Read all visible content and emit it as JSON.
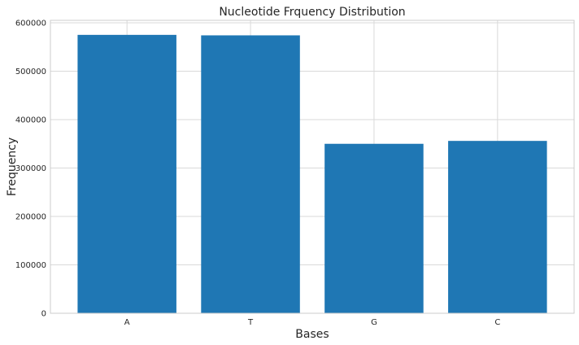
{
  "chart_data": {
    "type": "bar",
    "title": "Nucleotide Frquency Distribution",
    "xlabel": "Bases",
    "ylabel": "Frequency",
    "categories": [
      "A",
      "T",
      "G",
      "C"
    ],
    "values": [
      575000,
      574000,
      350000,
      356000
    ],
    "ylim": [
      0,
      605000
    ],
    "yticks": [
      0,
      100000,
      200000,
      300000,
      400000,
      500000,
      600000
    ],
    "ytick_labels": [
      "0",
      "100000",
      "200000",
      "300000",
      "400000",
      "500000",
      "600000"
    ],
    "grid": true,
    "bar_color": "#1f77b4",
    "grid_color": "#d9d9d9"
  }
}
